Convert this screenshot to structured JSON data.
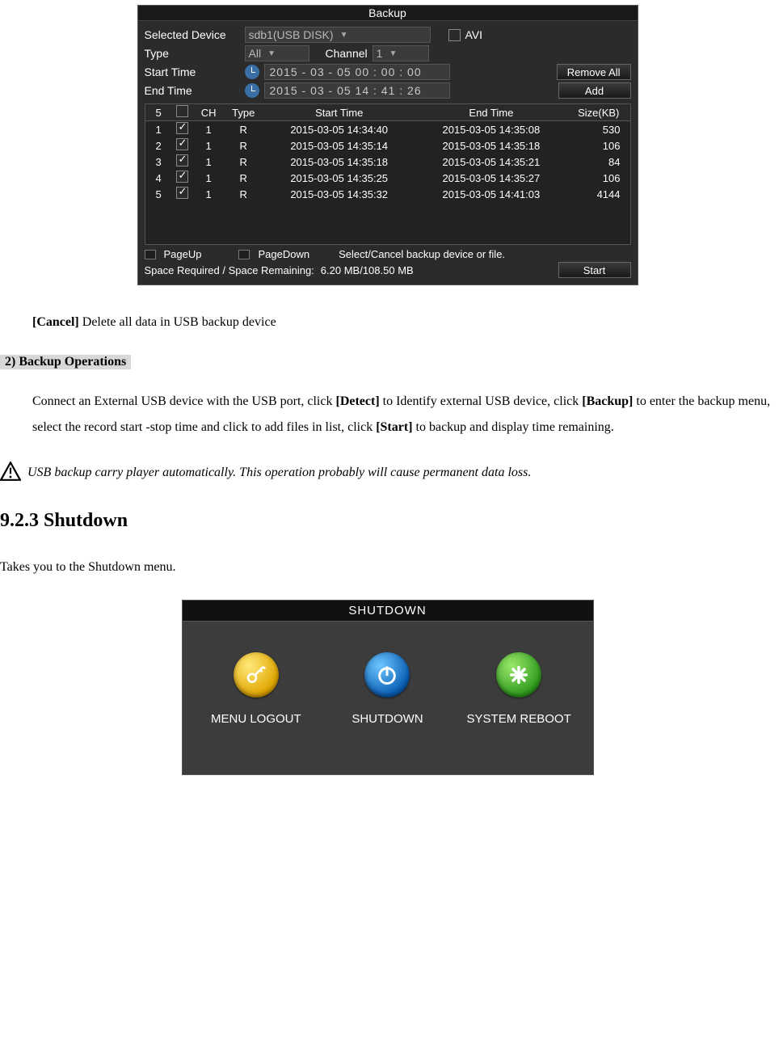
{
  "backup_dialog": {
    "title": "Backup",
    "selected_device_label": "Selected Device",
    "selected_device_value": "sdb1(USB DISK)",
    "avi_label": "AVI",
    "type_label": "Type",
    "type_value": "All",
    "channel_label": "Channel",
    "channel_value": "1",
    "start_time_label": "Start Time",
    "start_time_value": "2015  - 03 - 05   00 : 00 : 00",
    "end_time_label": "End Time",
    "end_time_value": "2015  - 03 - 05   14 : 41 : 26",
    "remove_all_btn": "Remove All",
    "add_btn": "Add",
    "count_header": "5",
    "columns": {
      "ch": "CH",
      "type": "Type",
      "start": "Start Time",
      "end": "End Time",
      "size": "Size(KB)"
    },
    "rows": [
      {
        "idx": "1",
        "checked": true,
        "ch": "1",
        "type": "R",
        "start": "2015-03-05 14:34:40",
        "end": "2015-03-05 14:35:08",
        "size": "530"
      },
      {
        "idx": "2",
        "checked": true,
        "ch": "1",
        "type": "R",
        "start": "2015-03-05 14:35:14",
        "end": "2015-03-05 14:35:18",
        "size": "106"
      },
      {
        "idx": "3",
        "checked": true,
        "ch": "1",
        "type": "R",
        "start": "2015-03-05 14:35:18",
        "end": "2015-03-05 14:35:21",
        "size": "84"
      },
      {
        "idx": "4",
        "checked": true,
        "ch": "1",
        "type": "R",
        "start": "2015-03-05 14:35:25",
        "end": "2015-03-05 14:35:27",
        "size": "106"
      },
      {
        "idx": "5",
        "checked": true,
        "ch": "1",
        "type": "R",
        "start": "2015-03-05 14:35:32",
        "end": "2015-03-05 14:41:03",
        "size": "4144"
      }
    ],
    "pageup": "PageUp",
    "pagedown": "PageDown",
    "hint": "Select/Cancel backup device or file.",
    "space_label": "Space Required / Space Remaining:",
    "space_value": "6.20 MB/108.50 MB",
    "start_btn": "Start"
  },
  "doc": {
    "cancel_bold": "[Cancel]",
    "cancel_rest": " Delete all data in USB backup device",
    "section2_label": "2)    Backup Operations",
    "para_1a": "Connect an External USB device with the USB port, click ",
    "para_1_detect": "[Detect]",
    "para_1b": " to Identify external USB device, click ",
    "para_2_backup": "[Backup]",
    "para_2b": " to enter the backup menu, select the record start -stop time and click to add files in list, click ",
    "para_3_start": "[Start]",
    "para_3b": " to backup and display time remaining.",
    "warn": " USB backup carry player automatically. This operation probably will cause permanent data loss.",
    "heading": "9.2.3  Shutdown",
    "shutdown_intro": "Takes you to the Shutdown menu."
  },
  "shutdown_dialog": {
    "title": "SHUTDOWN",
    "logout_label": "MENU LOGOUT",
    "shutdown_label": "SHUTDOWN",
    "reboot_label": "SYSTEM REBOOT"
  }
}
